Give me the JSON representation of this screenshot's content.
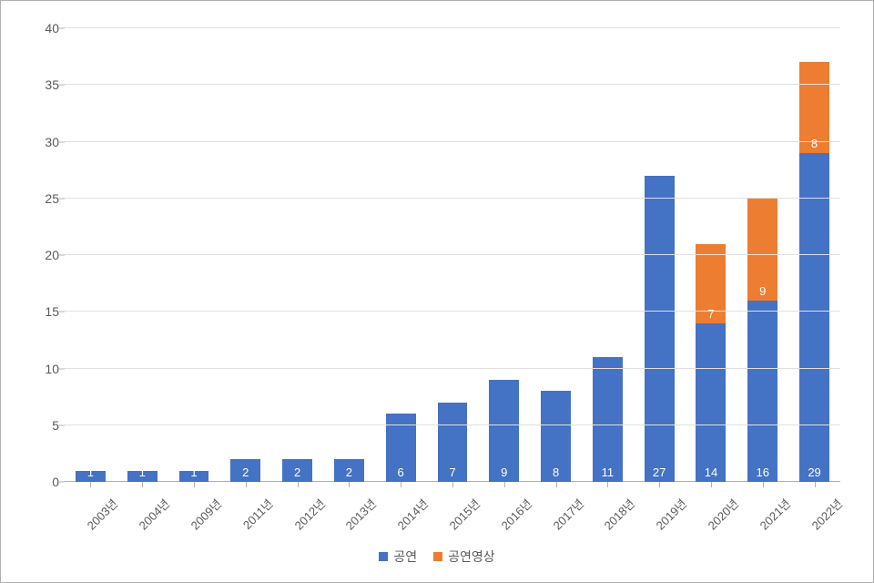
{
  "chart": {
    "type": "stacked-bar",
    "ylim": [
      0,
      40
    ],
    "ytick_step": 5,
    "grid_color": "#e0e0e0",
    "axis_color": "#b0b0b0",
    "tick_label_color": "#595959",
    "tick_fontsize": 14,
    "data_label_fontsize": 13,
    "data_label_color": "#ffffff",
    "background_color": "#ffffff",
    "bar_width_ratio": 0.58,
    "categories": [
      "2003년",
      "2004년",
      "2009년",
      "2011년",
      "2012년",
      "2013년",
      "2014년",
      "2015년",
      "2016년",
      "2017년",
      "2018년",
      "2019년",
      "2020년",
      "2021년",
      "2022년"
    ],
    "series": [
      {
        "name": "공연",
        "color": "#4472c4",
        "values": [
          1,
          1,
          1,
          2,
          2,
          2,
          6,
          7,
          9,
          8,
          11,
          27,
          14,
          16,
          29
        ]
      },
      {
        "name": "공연영상",
        "color": "#ed7d31",
        "values": [
          0,
          0,
          0,
          0,
          0,
          0,
          0,
          0,
          0,
          0,
          0,
          0,
          7,
          9,
          8
        ]
      }
    ],
    "legend_position": "bottom-center"
  }
}
